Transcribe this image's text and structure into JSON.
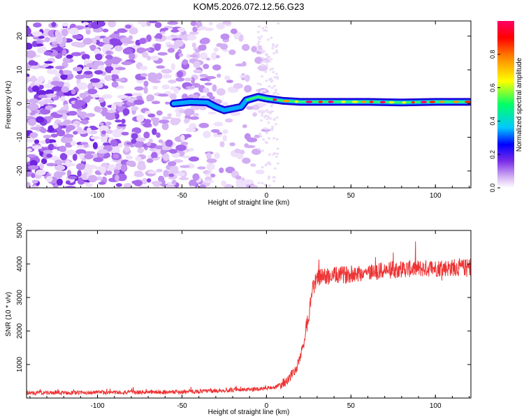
{
  "figure": {
    "title": "KOM5.2026.072.12.56.G23"
  },
  "chart_data": [
    {
      "type": "heatmap",
      "name": "spectrogram",
      "title": "KOM5.2026.072.12.56.G23",
      "xlabel": "Height of straight line (km)",
      "ylabel": "Frequency (Hz)",
      "xlim": [
        -142,
        121
      ],
      "ylim": [
        -25,
        24.5
      ],
      "xticks": [
        -100,
        -50,
        0,
        50,
        100
      ],
      "yticks": [
        -20,
        -10,
        0,
        10,
        20
      ],
      "colorbar": {
        "label": "Normalized spectral amplitude",
        "range": [
          0.0,
          1.0
        ],
        "ticks": [
          0.0,
          0.2,
          0.4,
          0.6,
          0.8
        ],
        "tick_labels": [
          "0.0",
          "0.2",
          "0.4",
          "0.6",
          "0.8"
        ],
        "colormap": [
          "#ffffff",
          "#d9b8f5",
          "#7a2ce8",
          "#0000ff",
          "#00c8ff",
          "#00ff66",
          "#ffff00",
          "#ff8800",
          "#ff0000",
          "#ff0066"
        ]
      },
      "signal_line": [
        {
          "x": -55,
          "y": 0.0
        },
        {
          "x": -45,
          "y": 0.5
        },
        {
          "x": -35,
          "y": 0.3
        },
        {
          "x": -30,
          "y": -1.0
        },
        {
          "x": -25,
          "y": -2.0
        },
        {
          "x": -20,
          "y": -1.5
        },
        {
          "x": -15,
          "y": -1.0
        },
        {
          "x": -12,
          "y": 1.0
        },
        {
          "x": -5,
          "y": 2.0
        },
        {
          "x": 0,
          "y": 1.5
        },
        {
          "x": 10,
          "y": 0.8
        },
        {
          "x": 20,
          "y": 0.5
        },
        {
          "x": 40,
          "y": 0.5
        },
        {
          "x": 60,
          "y": 0.5
        },
        {
          "x": 80,
          "y": 0.3
        },
        {
          "x": 100,
          "y": 0.5
        },
        {
          "x": 120,
          "y": 0.5
        }
      ],
      "noise_region_x": [
        -142,
        0
      ]
    },
    {
      "type": "line",
      "name": "snr",
      "xlabel": "Height of straight line (km)",
      "ylabel": "SNR (10 * v/v)",
      "xlim": [
        -142,
        121
      ],
      "ylim": [
        0,
        5000
      ],
      "xticks": [
        -100,
        -50,
        0,
        50,
        100
      ],
      "yticks": [
        1000,
        2000,
        3000,
        4000,
        5000
      ],
      "series": [
        {
          "name": "SNR",
          "color": "#ee3333",
          "trend": [
            {
              "x": -142,
              "y": 150
            },
            {
              "x": -50,
              "y": 180
            },
            {
              "x": -10,
              "y": 250
            },
            {
              "x": 5,
              "y": 320
            },
            {
              "x": 12,
              "y": 500
            },
            {
              "x": 18,
              "y": 900
            },
            {
              "x": 22,
              "y": 1600
            },
            {
              "x": 25,
              "y": 2500
            },
            {
              "x": 27,
              "y": 3200
            },
            {
              "x": 30,
              "y": 3600
            },
            {
              "x": 50,
              "y": 3700
            },
            {
              "x": 80,
              "y": 3850
            },
            {
              "x": 121,
              "y": 3900
            }
          ]
        }
      ]
    }
  ]
}
